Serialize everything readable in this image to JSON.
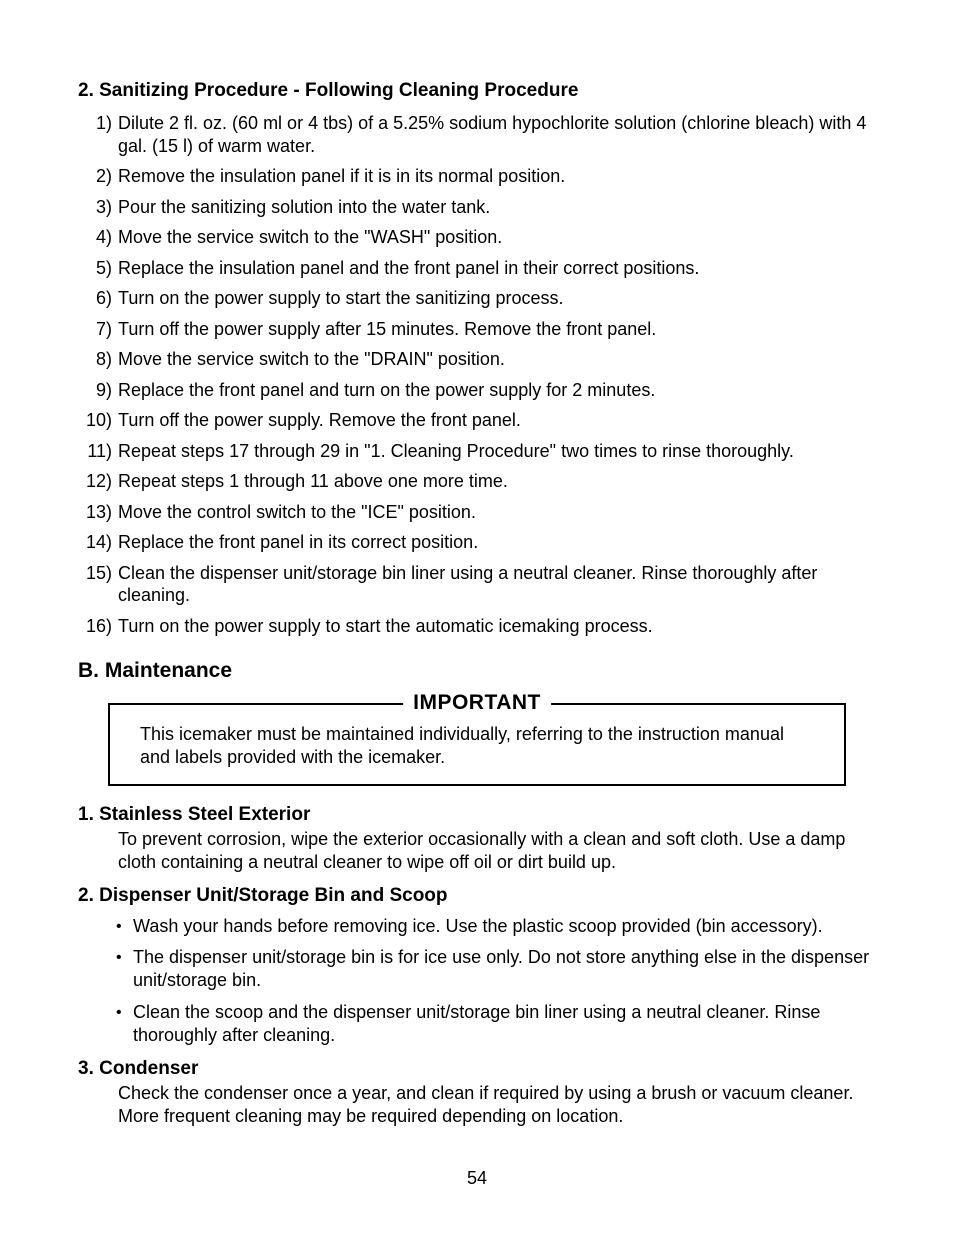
{
  "section2": {
    "heading": "2. Sanitizing Procedure - Following Cleaning Procedure",
    "steps": [
      "Dilute 2 fl. oz. (60 ml or 4 tbs) of a 5.25% sodium hypochlorite solution (chlorine bleach) with 4 gal. (15 l) of warm water.",
      "Remove the insulation panel if it is in its normal position.",
      "Pour the sanitizing solution into the water tank.",
      "Move the service switch to the \"WASH\" position.",
      "Replace the insulation panel and the front panel in their correct positions.",
      "Turn on the power supply to start the sanitizing process.",
      "Turn off the power supply after 15 minutes. Remove the front panel.",
      "Move the service switch to the \"DRAIN\" position.",
      "Replace the front panel and turn on the power supply for 2 minutes.",
      "Turn off the power supply. Remove the front panel.",
      "Repeat steps 17 through 29 in \"1. Cleaning Procedure\" two times to rinse thoroughly.",
      "Repeat steps 1 through 11 above one more time.",
      "Move the control switch to the \"ICE\" position.",
      "Replace the front panel in its correct position.",
      "Clean the dispenser unit/storage bin liner using a neutral cleaner. Rinse thoroughly after cleaning.",
      "Turn on the power supply to start the automatic icemaking process."
    ]
  },
  "sectionB": {
    "heading": "B. Maintenance",
    "important_label": "IMPORTANT",
    "important_body": "This icemaker must be maintained individually, referring to the instruction manual and labels provided with the icemaker.",
    "items": [
      {
        "heading": "1. Stainless Steel Exterior",
        "body": "To prevent corrosion, wipe the exterior occasionally with a clean and soft cloth. Use a damp cloth containing a neutral cleaner to wipe off oil or dirt build up."
      },
      {
        "heading": "2. Dispenser Unit/Storage Bin and Scoop",
        "bullets": [
          "Wash your hands before removing ice. Use the plastic scoop provided (bin accessory).",
          "The dispenser unit/storage bin is for ice use only. Do not store anything else in the dispenser unit/storage bin.",
          "Clean the scoop and the dispenser unit/storage bin liner using a neutral cleaner. Rinse thoroughly after cleaning."
        ]
      },
      {
        "heading": "3. Condenser",
        "body": "Check the condenser once a year, and clean if required by using a brush or vacuum cleaner. More frequent cleaning may be required depending on location."
      }
    ]
  },
  "page_number": "54"
}
